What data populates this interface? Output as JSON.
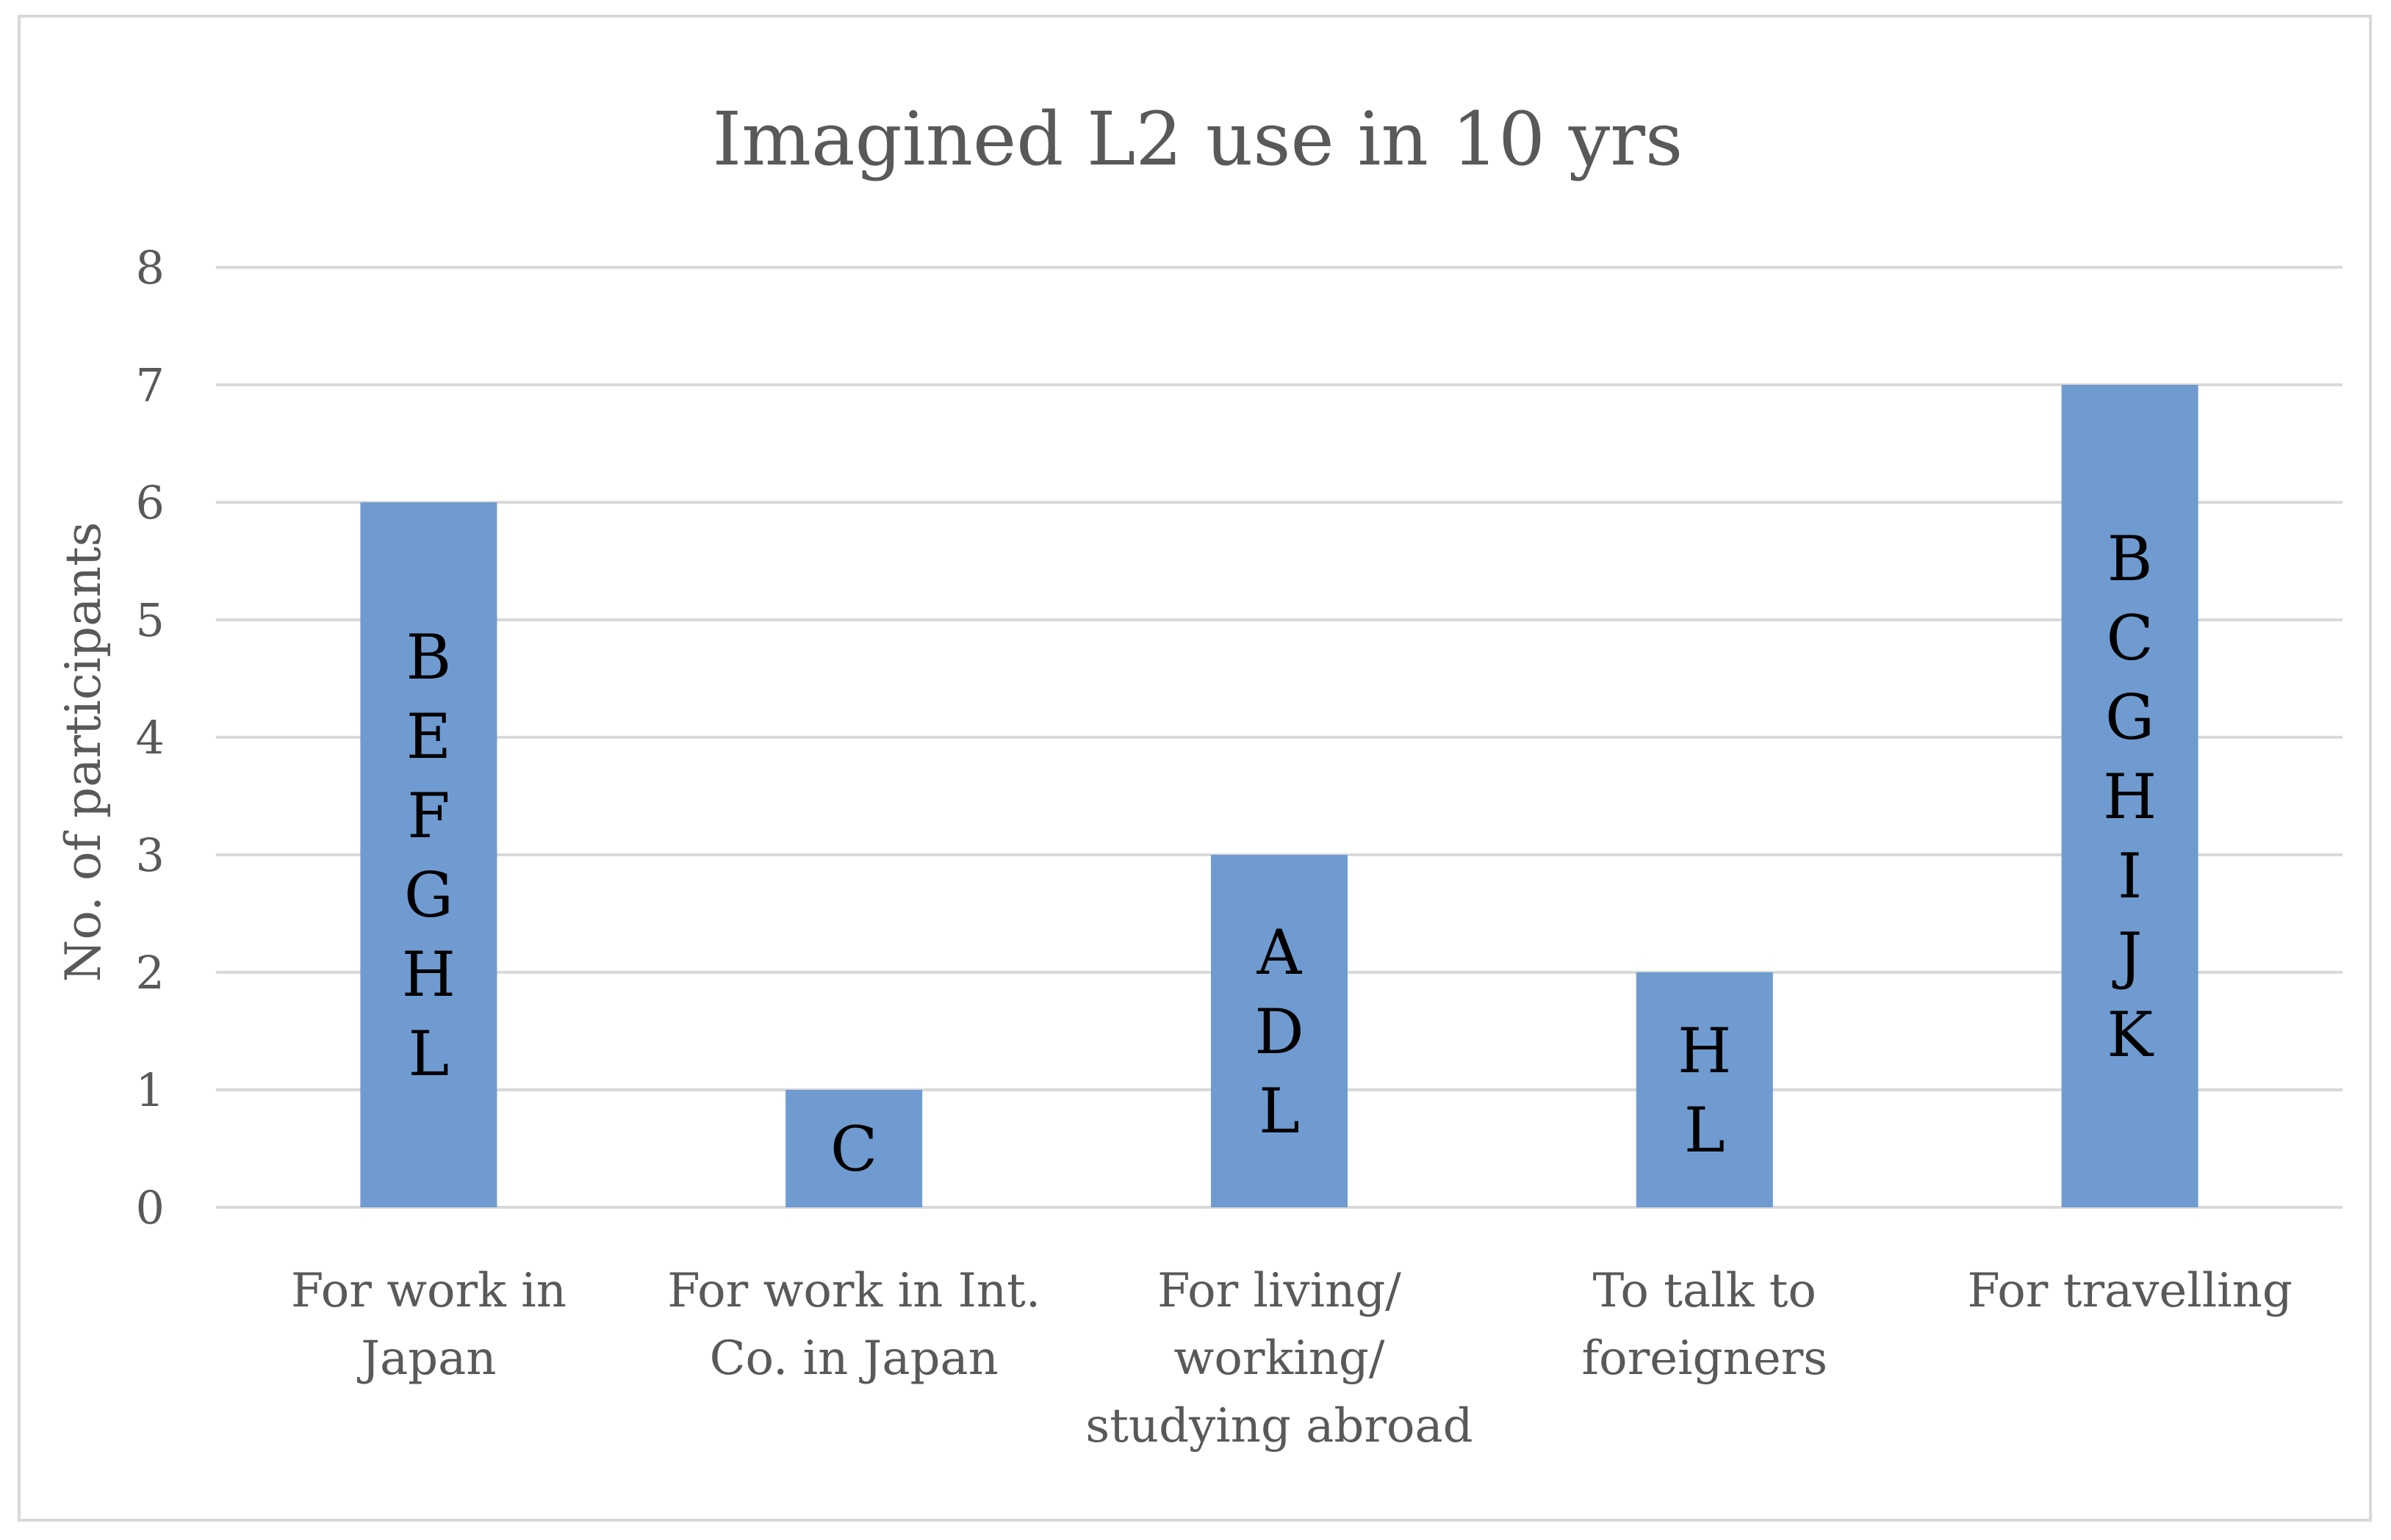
{
  "chart_data": {
    "type": "bar",
    "title": "Imagined L2 use in 10 yrs",
    "xlabel": "",
    "ylabel": "No. of participants",
    "ylim": [
      0,
      8
    ],
    "yticks": [
      "0",
      "1",
      "2",
      "3",
      "4",
      "5",
      "6",
      "7",
      "8"
    ],
    "grid": true,
    "legend": "none",
    "bar_color": "#6f9bd1",
    "categories": [
      "For work in Japan",
      "For work in Int. Co. in Japan",
      "For living/ working/ studying abroad",
      "To talk to foreigners",
      "For travelling"
    ],
    "category_label_lines": [
      [
        "For work in",
        "Japan"
      ],
      [
        "For work in Int.",
        "Co. in Japan"
      ],
      [
        "For living/",
        "working/",
        "studying abroad"
      ],
      [
        "To talk to",
        "foreigners"
      ],
      [
        "For travelling"
      ]
    ],
    "values": [
      6,
      1,
      3,
      2,
      7
    ],
    "bar_labels": [
      [
        "B",
        "E",
        "F",
        "G",
        "H",
        "L"
      ],
      [
        "C"
      ],
      [
        "A",
        "D",
        "L"
      ],
      [
        "H",
        "L"
      ],
      [
        "B",
        "C",
        "G",
        "H",
        "I",
        "J",
        "K"
      ]
    ]
  }
}
